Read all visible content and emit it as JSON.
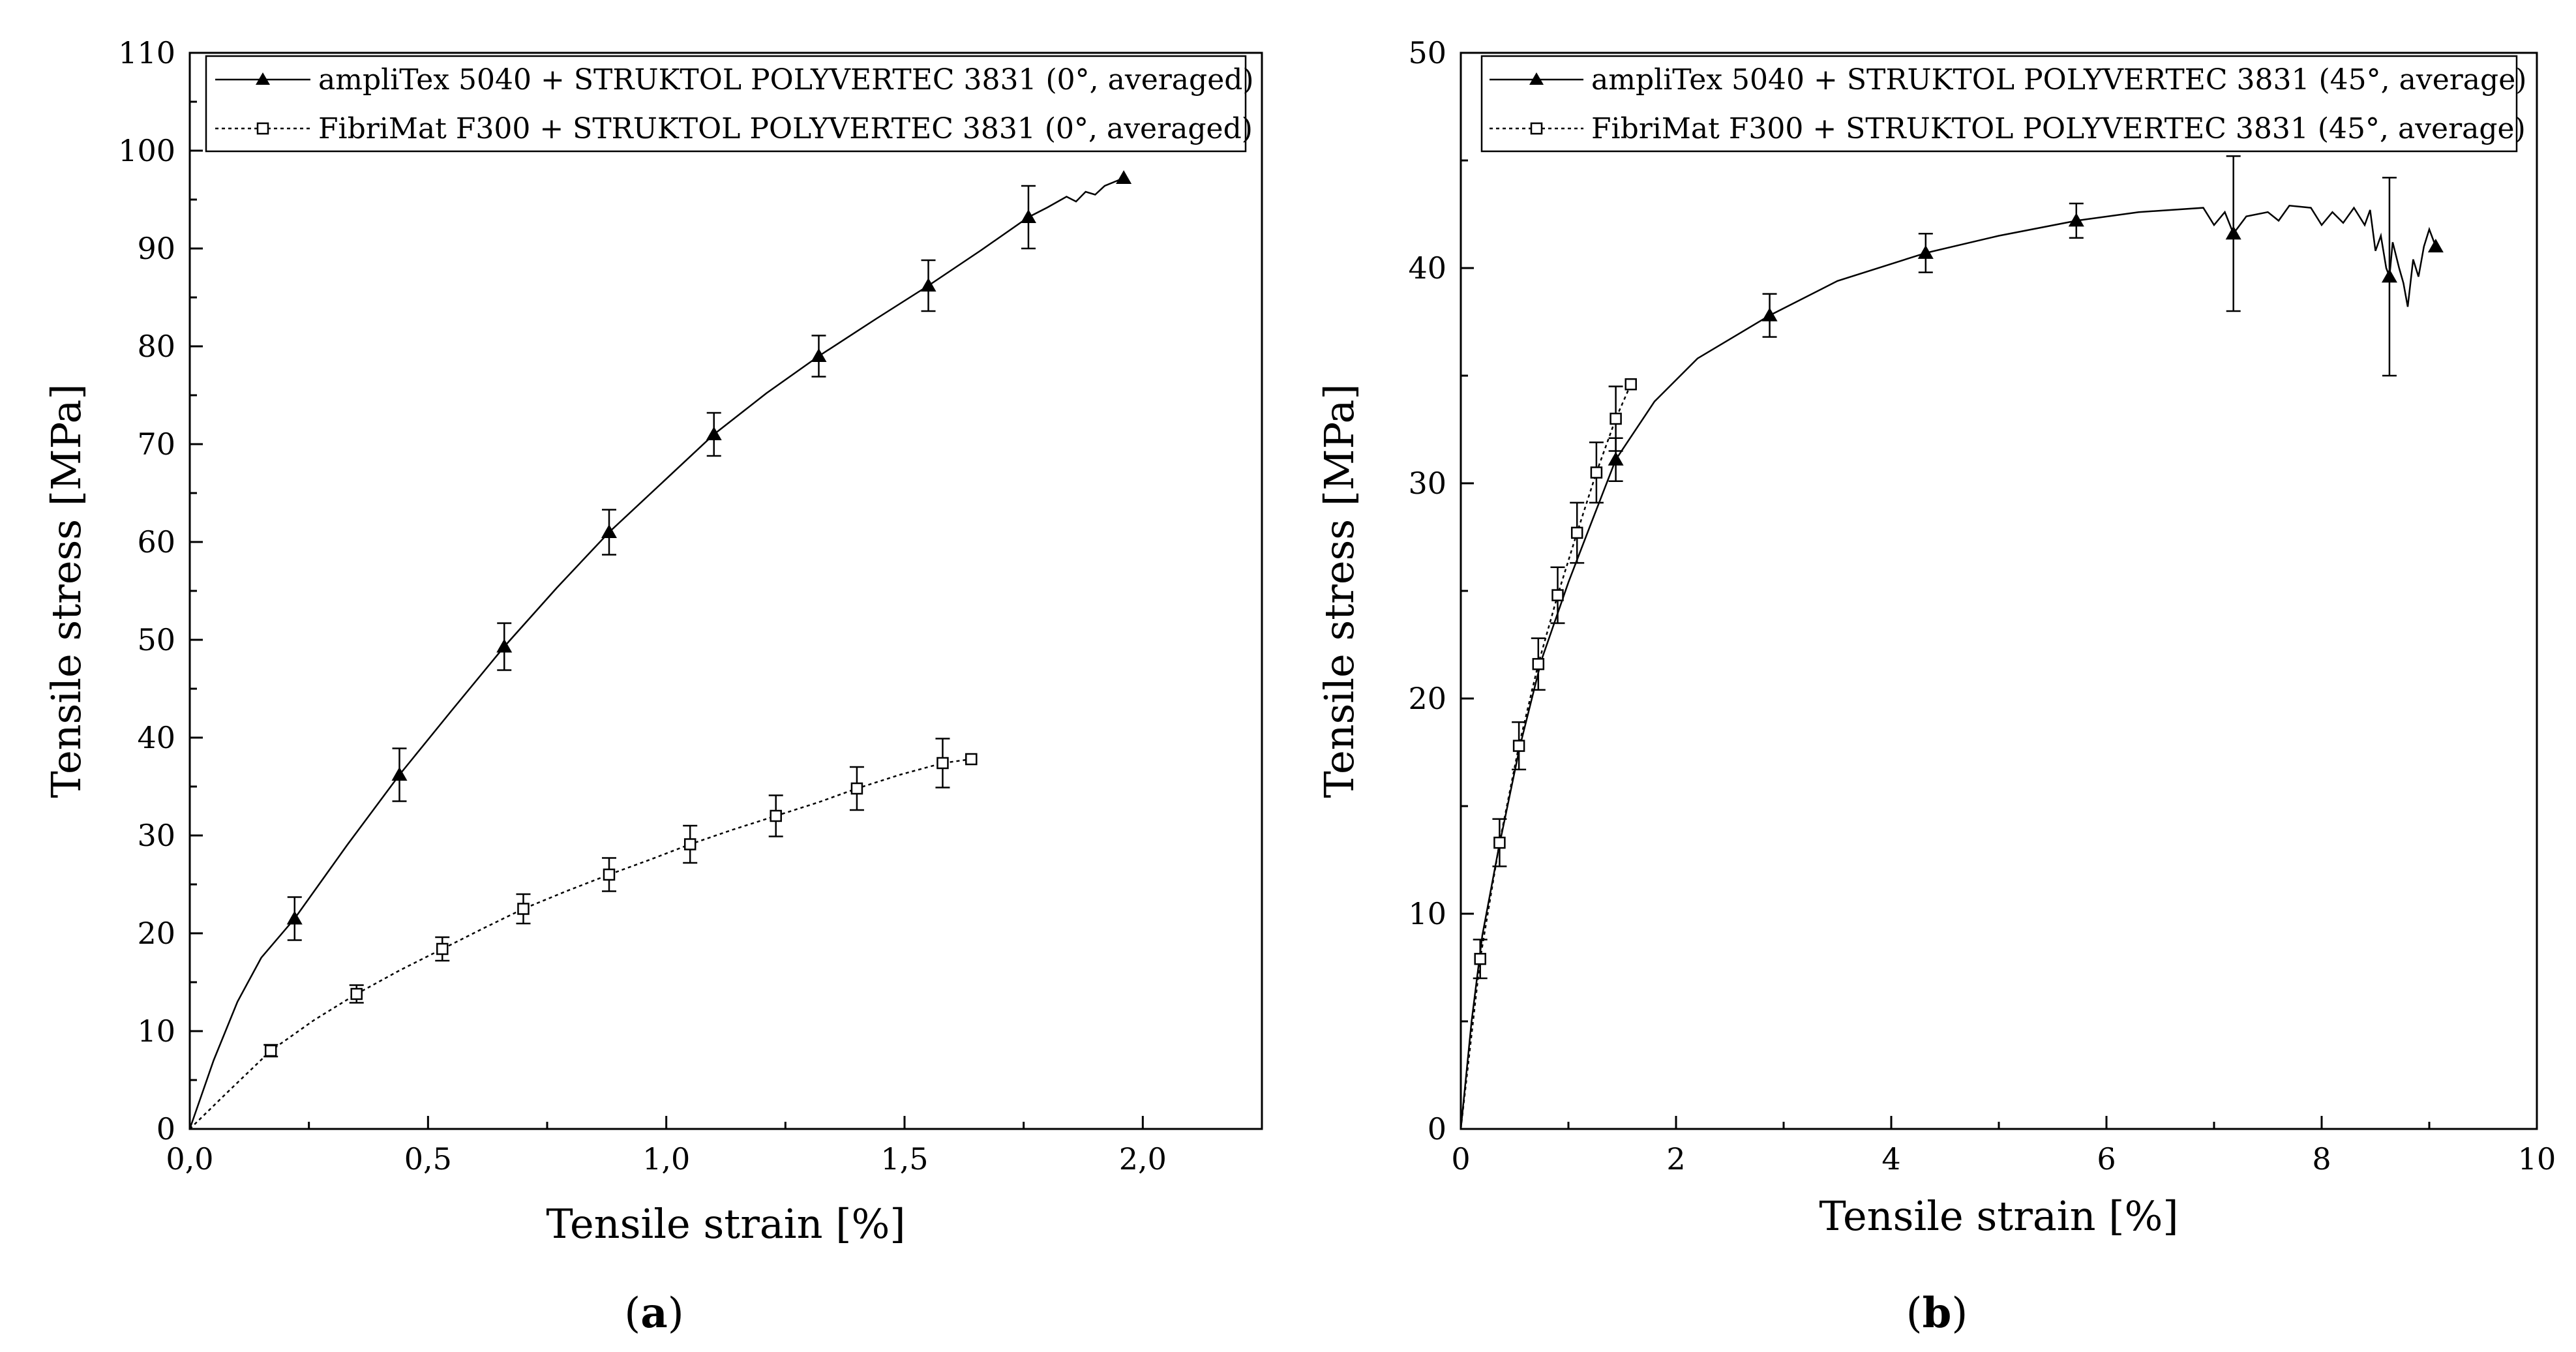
{
  "chart_data": [
    {
      "type": "line",
      "panel_label": "a",
      "xlabel": "Tensile strain [%]",
      "ylabel": "Tensile stress [MPa]",
      "xlim": [
        0,
        2.25
      ],
      "ylim": [
        0,
        110
      ],
      "xticks": [
        "0,0",
        "0,5",
        "1,0",
        "1,5",
        "2,0"
      ],
      "xtick_values": [
        0,
        0.5,
        1.0,
        1.5,
        2.0
      ],
      "yticks": [
        "0",
        "10",
        "20",
        "30",
        "40",
        "50",
        "60",
        "70",
        "80",
        "90",
        "100",
        "110"
      ],
      "ytick_values": [
        0,
        10,
        20,
        30,
        40,
        50,
        60,
        70,
        80,
        90,
        100,
        110
      ],
      "legend_position": "top-right",
      "series": [
        {
          "name": "ampliTex 5040 + STRUKTOL POLYVERTEC 3831 (0°, averaged)",
          "marker": "filled-triangle",
          "line": "solid",
          "curve": [
            [
              0,
              0
            ],
            [
              0.05,
              7
            ],
            [
              0.1,
              13
            ],
            [
              0.15,
              17.5
            ],
            [
              0.22,
              21.5
            ],
            [
              0.33,
              29
            ],
            [
              0.44,
              36.2
            ],
            [
              0.55,
              42.8
            ],
            [
              0.66,
              49.3
            ],
            [
              0.77,
              55.3
            ],
            [
              0.88,
              61
            ],
            [
              0.99,
              66
            ],
            [
              1.1,
              71
            ],
            [
              1.21,
              75.2
            ],
            [
              1.32,
              79
            ],
            [
              1.44,
              82.8
            ],
            [
              1.55,
              86.2
            ],
            [
              1.66,
              89.8
            ],
            [
              1.76,
              93.2
            ],
            [
              1.8,
              94.2
            ],
            [
              1.84,
              95.3
            ],
            [
              1.86,
              94.8
            ],
            [
              1.88,
              95.8
            ],
            [
              1.9,
              95.5
            ],
            [
              1.92,
              96.4
            ],
            [
              1.96,
              97.2
            ]
          ],
          "markers": [
            [
              0.22,
              21.5
            ],
            [
              0.44,
              36.2
            ],
            [
              0.66,
              49.3
            ],
            [
              0.88,
              61
            ],
            [
              1.1,
              71
            ],
            [
              1.32,
              79
            ],
            [
              1.55,
              86.2
            ],
            [
              1.76,
              93.2
            ],
            [
              1.96,
              97.2
            ]
          ],
          "errors": [
            2.2,
            2.7,
            2.4,
            2.3,
            2.2,
            2.1,
            2.6,
            3.2,
            0
          ]
        },
        {
          "name": "FibriMat F300 + STRUKTOL POLYVERTEC 3831 (0°, averaged)",
          "marker": "open-square",
          "line": "dotted",
          "curve": [
            [
              0,
              0
            ],
            [
              0.08,
              3.8
            ],
            [
              0.17,
              8
            ],
            [
              0.26,
              11.1
            ],
            [
              0.35,
              13.8
            ],
            [
              0.44,
              16.2
            ],
            [
              0.53,
              18.4
            ],
            [
              0.62,
              20.6
            ],
            [
              0.7,
              22.5
            ],
            [
              0.79,
              24.3
            ],
            [
              0.88,
              26
            ],
            [
              0.97,
              27.6
            ],
            [
              1.05,
              29.1
            ],
            [
              1.14,
              30.6
            ],
            [
              1.23,
              32
            ],
            [
              1.32,
              33.4
            ],
            [
              1.4,
              34.8
            ],
            [
              1.49,
              36.2
            ],
            [
              1.58,
              37.4
            ],
            [
              1.64,
              37.8
            ]
          ],
          "markers": [
            [
              0.17,
              8
            ],
            [
              0.35,
              13.8
            ],
            [
              0.53,
              18.4
            ],
            [
              0.7,
              22.5
            ],
            [
              0.88,
              26
            ],
            [
              1.05,
              29.1
            ],
            [
              1.23,
              32
            ],
            [
              1.4,
              34.8
            ],
            [
              1.58,
              37.4
            ],
            [
              1.64,
              37.8
            ]
          ],
          "errors": [
            0.6,
            0.9,
            1.2,
            1.5,
            1.7,
            1.9,
            2.1,
            2.2,
            2.5,
            0
          ]
        }
      ]
    },
    {
      "type": "line",
      "panel_label": "b",
      "xlabel": "Tensile strain [%]",
      "ylabel": "Tensile stress [MPa]",
      "xlim": [
        0,
        10
      ],
      "ylim": [
        0,
        50
      ],
      "xticks": [
        "0",
        "2",
        "4",
        "6",
        "8",
        "10"
      ],
      "xtick_values": [
        0,
        2,
        4,
        6,
        8,
        10
      ],
      "yticks": [
        "0",
        "10",
        "20",
        "30",
        "40",
        "50"
      ],
      "ytick_values": [
        0,
        10,
        20,
        30,
        40,
        50
      ],
      "legend_position": "top-right",
      "series": [
        {
          "name": "ampliTex 5040 + STRUKTOL POLYVERTEC 3831 (45°, average)",
          "marker": "filled-triangle",
          "line": "solid",
          "curve": [
            [
              0,
              0
            ],
            [
              0.1,
              5
            ],
            [
              0.2,
              9
            ],
            [
              0.35,
              13
            ],
            [
              0.55,
              17.8
            ],
            [
              0.75,
              21.8
            ],
            [
              1,
              25.4
            ],
            [
              1.2,
              28
            ],
            [
              1.44,
              31.1
            ],
            [
              1.8,
              33.8
            ],
            [
              2.2,
              35.8
            ],
            [
              2.87,
              37.8
            ],
            [
              3.5,
              39.4
            ],
            [
              4.32,
              40.7
            ],
            [
              5,
              41.5
            ],
            [
              5.72,
              42.2
            ],
            [
              6.3,
              42.6
            ],
            [
              6.9,
              42.8
            ],
            [
              7.0,
              42.0
            ],
            [
              7.1,
              42.6
            ],
            [
              7.18,
              41.6
            ],
            [
              7.3,
              42.4
            ],
            [
              7.5,
              42.6
            ],
            [
              7.6,
              42.2
            ],
            [
              7.7,
              42.9
            ],
            [
              7.9,
              42.8
            ],
            [
              8.0,
              42.0
            ],
            [
              8.1,
              42.6
            ],
            [
              8.2,
              42.1
            ],
            [
              8.3,
              42.8
            ],
            [
              8.4,
              42.0
            ],
            [
              8.45,
              42.7
            ],
            [
              8.5,
              40.8
            ],
            [
              8.55,
              41.5
            ],
            [
              8.6,
              40.0
            ],
            [
              8.63,
              39.6
            ],
            [
              8.66,
              41.2
            ],
            [
              8.72,
              40.0
            ],
            [
              8.76,
              39.3
            ],
            [
              8.8,
              38.2
            ],
            [
              8.85,
              40.4
            ],
            [
              8.9,
              39.6
            ],
            [
              8.95,
              41.0
            ],
            [
              9.0,
              41.8
            ],
            [
              9.06,
              41.0
            ]
          ],
          "markers": [
            [
              1.44,
              31.1
            ],
            [
              2.87,
              37.8
            ],
            [
              4.32,
              40.7
            ],
            [
              5.72,
              42.2
            ],
            [
              7.18,
              41.6
            ],
            [
              8.63,
              39.6
            ],
            [
              9.06,
              41.0
            ]
          ],
          "errors": [
            1.0,
            1.0,
            0.9,
            0.8,
            3.6,
            4.6,
            0
          ]
        },
        {
          "name": "FibriMat F300 + STRUKTOL POLYVERTEC 3831 (45°, average)",
          "marker": "open-square",
          "line": "dotted",
          "curve": [
            [
              0,
              0
            ],
            [
              0.18,
              7.9
            ],
            [
              0.36,
              13.3
            ],
            [
              0.54,
              17.8
            ],
            [
              0.72,
              21.6
            ],
            [
              0.9,
              24.8
            ],
            [
              1.08,
              27.7
            ],
            [
              1.26,
              30.5
            ],
            [
              1.44,
              33.0
            ],
            [
              1.58,
              34.6
            ]
          ],
          "markers": [
            [
              0.18,
              7.9
            ],
            [
              0.36,
              13.3
            ],
            [
              0.54,
              17.8
            ],
            [
              0.72,
              21.6
            ],
            [
              0.9,
              24.8
            ],
            [
              1.08,
              27.7
            ],
            [
              1.26,
              30.5
            ],
            [
              1.44,
              33.0
            ],
            [
              1.58,
              34.6
            ]
          ],
          "errors": [
            0.9,
            1.1,
            1.1,
            1.2,
            1.3,
            1.4,
            1.4,
            1.5,
            0
          ]
        }
      ]
    }
  ]
}
